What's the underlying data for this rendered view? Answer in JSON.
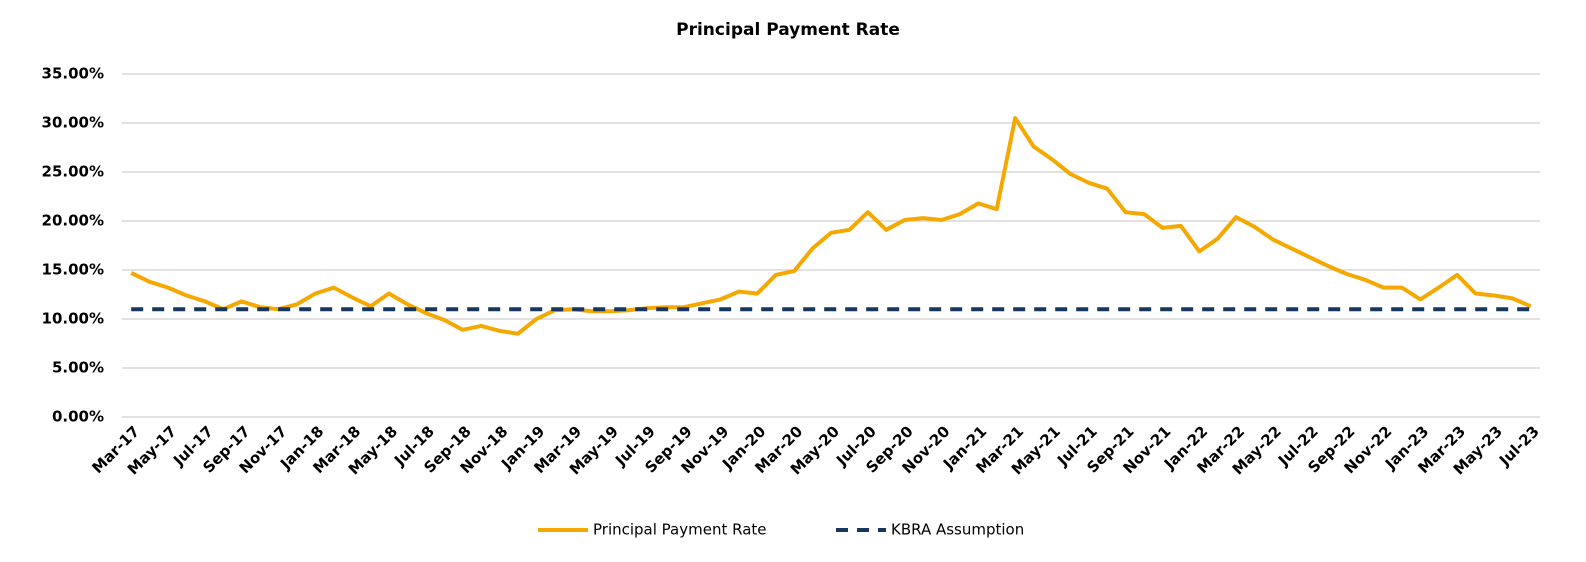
{
  "chart_data": {
    "type": "line",
    "title": "Principal Payment Rate",
    "categories": [
      "Mar-17",
      null,
      "May-17",
      null,
      "Jul-17",
      null,
      "Sep-17",
      null,
      "Nov-17",
      null,
      "Jan-18",
      null,
      "Mar-18",
      null,
      "May-18",
      null,
      "Jul-18",
      null,
      "Sep-18",
      null,
      "Nov-18",
      null,
      "Jan-19",
      null,
      "Mar-19",
      null,
      "May-19",
      null,
      "Jul-19",
      null,
      "Sep-19",
      null,
      "Nov-19",
      null,
      "Jan-20",
      null,
      "Mar-20",
      null,
      "May-20",
      null,
      "Jul-20",
      null,
      "Sep-20",
      null,
      "Nov-20",
      null,
      "Jan-21",
      null,
      "Mar-21",
      null,
      "May-21",
      null,
      "Jul-21",
      null,
      "Sep-21",
      null,
      "Nov-21",
      null,
      "Jan-22",
      null,
      "Mar-22",
      null,
      "May-22",
      null,
      "Jul-22",
      null,
      "Sep-22",
      null,
      "Nov-22",
      null,
      "Jan-23",
      null,
      "Mar-23",
      null,
      "May-23",
      null,
      "Jul-23"
    ],
    "series": [
      {
        "name": "Principal Payment Rate",
        "color": "#f5a800",
        "dashed": false,
        "values": [
          14.7,
          13.8,
          13.2,
          12.4,
          11.8,
          11.0,
          11.8,
          11.2,
          11.0,
          11.5,
          12.6,
          13.2,
          12.2,
          11.3,
          12.6,
          11.5,
          10.6,
          9.9,
          8.9,
          9.3,
          8.8,
          8.5,
          10.0,
          10.9,
          11.0,
          10.8,
          10.8,
          10.9,
          11.1,
          11.2,
          11.2,
          11.6,
          12.0,
          12.8,
          12.6,
          14.5,
          14.9,
          17.2,
          18.8,
          19.1,
          20.9,
          19.1,
          20.1,
          20.3,
          20.1,
          20.7,
          21.8,
          21.2,
          30.5,
          27.6,
          26.3,
          24.8,
          23.9,
          23.3,
          20.9,
          20.7,
          19.3,
          19.5,
          16.9,
          18.2,
          20.4,
          19.4,
          18.1,
          17.2,
          16.3,
          15.4,
          14.6,
          14.0,
          13.2,
          13.2,
          12.0,
          13.2,
          14.5,
          12.6,
          12.4,
          12.1,
          11.3
        ]
      },
      {
        "name": "KBRA Assumption",
        "color": "#17375e",
        "dashed": true,
        "values": [
          11,
          11,
          11,
          11,
          11,
          11,
          11,
          11,
          11,
          11,
          11,
          11,
          11,
          11,
          11,
          11,
          11,
          11,
          11,
          11,
          11,
          11,
          11,
          11,
          11,
          11,
          11,
          11,
          11,
          11,
          11,
          11,
          11,
          11,
          11,
          11,
          11,
          11,
          11,
          11,
          11,
          11,
          11,
          11,
          11,
          11,
          11,
          11,
          11,
          11,
          11,
          11,
          11,
          11,
          11,
          11,
          11,
          11,
          11,
          11,
          11,
          11,
          11,
          11,
          11,
          11,
          11,
          11,
          11,
          11,
          11,
          11,
          11,
          11,
          11,
          11,
          11
        ]
      }
    ],
    "ylim": [
      0,
      35
    ],
    "yticks": [
      {
        "value": 0,
        "label": "0.00%"
      },
      {
        "value": 5,
        "label": "5.00%"
      },
      {
        "value": 10,
        "label": "10.00%"
      },
      {
        "value": 15,
        "label": "15.00%"
      },
      {
        "value": 20,
        "label": "20.00%"
      },
      {
        "value": 25,
        "label": "25.00%"
      },
      {
        "value": 30,
        "label": "30.00%"
      },
      {
        "value": 35,
        "label": "35.00%"
      }
    ],
    "grid": true,
    "legend": "bottom"
  }
}
